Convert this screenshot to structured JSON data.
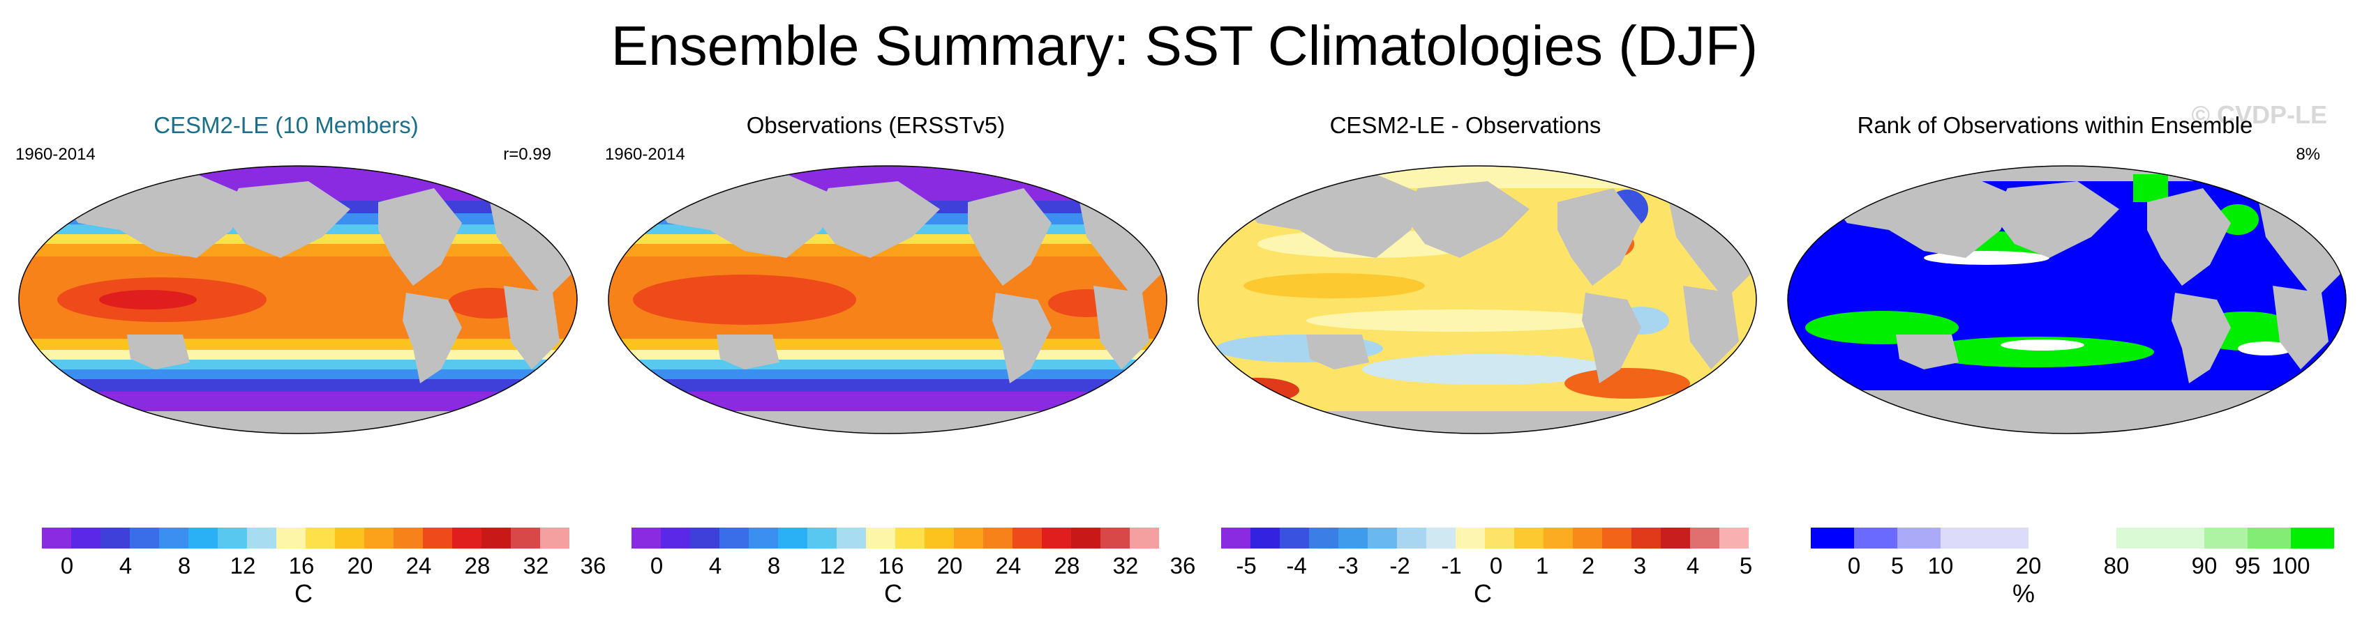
{
  "title": "Ensemble Summary: SST Climatologies (DJF)",
  "colors": {
    "land": "#c0c0c0",
    "title_teal": "#1a6e8a",
    "sst_palette": [
      "#8a2be2",
      "#5a28e6",
      "#3f3fd9",
      "#3a6ee8",
      "#3b8ff0",
      "#2ab0f5",
      "#58c8f0",
      "#a8dcf0",
      "#fdf5a8",
      "#fde04a",
      "#fcc31e",
      "#fba21a",
      "#f7821a",
      "#ef4a1a",
      "#e01e1e",
      "#c81818",
      "#d84848",
      "#f4a0a0"
    ],
    "diff_palette": [
      "#8a2be2",
      "#3322e0",
      "#3a52e0",
      "#3a7ee6",
      "#3f9cec",
      "#6ab8f0",
      "#a8d6f0",
      "#cfe8f2",
      "#fdf6b0",
      "#fde468",
      "#fcca30",
      "#fbac20",
      "#f88a1a",
      "#f26418",
      "#e03a1a",
      "#c81e1e",
      "#e07070",
      "#f8b0b0"
    ],
    "rank_palette": [
      "#0000ff",
      "#6a6aff",
      "#aaaaf8",
      "#dcdcfa",
      "#ffffff",
      "#dafad6",
      "#aef2a4",
      "#82ec74",
      "#00ee00"
    ]
  },
  "panels": [
    {
      "title": "CESM2-LE (10 Members)",
      "left_text": "1960-2014",
      "right_text": "r=0.99",
      "colorbar_ticks": [
        "0",
        "4",
        "8",
        "12",
        "16",
        "20",
        "24",
        "28",
        "32",
        "36"
      ],
      "unit": "C"
    },
    {
      "title": "Observations (ERSSTv5)",
      "left_text": "1960-2014",
      "right_text": "",
      "colorbar_ticks": [
        "0",
        "4",
        "8",
        "12",
        "16",
        "20",
        "24",
        "28",
        "32",
        "36"
      ],
      "unit": "C"
    },
    {
      "title": "CESM2-LE - Observations",
      "left_text": "",
      "right_text": "",
      "colorbar_ticks": [
        "-5",
        "-4",
        "-3",
        "-2",
        "-1",
        "0",
        "1",
        "2",
        "3",
        "4",
        "5"
      ],
      "unit": "C"
    },
    {
      "title": "Rank of Observations within Ensemble",
      "left_text": "",
      "right_text": "8%",
      "watermark": "© CVDP-LE",
      "colorbar_ticks": [
        "0",
        "5",
        "10",
        "20",
        "80",
        "90",
        "95",
        "100"
      ],
      "unit": "%"
    }
  ]
}
